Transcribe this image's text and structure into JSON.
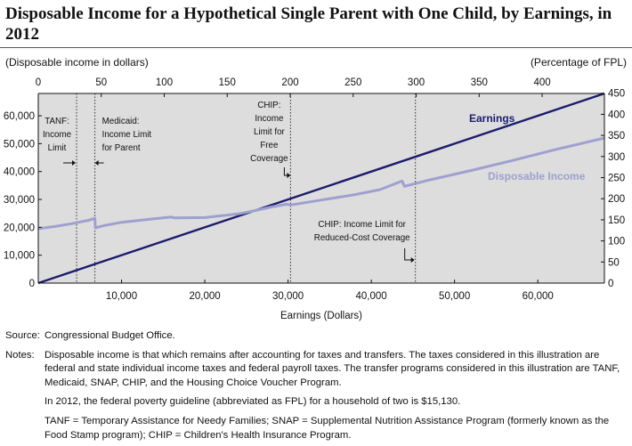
{
  "title": "Disposable Income for a Hypothetical Single Parent with One Child, by Earnings, in 2012",
  "chart_data": {
    "type": "line",
    "title": "Disposable Income for a Hypothetical Single Parent with One Child, by Earnings, in 2012",
    "xlabel": "Earnings (Dollars)",
    "ylabel_left": "(Disposable income in dollars)",
    "xlabel_top": "(Percentage of FPL)",
    "xlim": [
      0,
      68000
    ],
    "ylim": [
      0,
      68000
    ],
    "x_ticks": [
      10000,
      20000,
      30000,
      40000,
      50000,
      60000
    ],
    "x_tick_labels": [
      "10,000",
      "20,000",
      "30,000",
      "40,000",
      "50,000",
      "60,000"
    ],
    "y_ticks": [
      0,
      10000,
      20000,
      30000,
      40000,
      50000,
      60000
    ],
    "y_tick_labels": [
      "0",
      "10,000",
      "20,000",
      "30,000",
      "40,000",
      "50,000",
      "60,000"
    ],
    "fpl_top_ticks": [
      0,
      50,
      100,
      150,
      200,
      250,
      300,
      350,
      400
    ],
    "fpl_right_ticks": [
      0,
      50,
      100,
      150,
      200,
      250,
      300,
      350,
      400,
      450
    ],
    "fpl_unit_dollars": 15130,
    "series": [
      {
        "name": "Earnings",
        "color": "#1c1c6e",
        "x": [
          0,
          68000
        ],
        "y": [
          0,
          68000
        ]
      },
      {
        "name": "Disposable Income",
        "color": "#9ea0cf",
        "x": [
          0,
          2000,
          4000,
          6000,
          6800,
          6850,
          8000,
          10000,
          13000,
          16000,
          16300,
          20000,
          24000,
          26000,
          28000,
          29800,
          30300,
          34000,
          38000,
          41000,
          43700,
          44000,
          47000,
          52000,
          57000,
          62000,
          68000
        ],
        "y": [
          19500,
          20300,
          21300,
          22500,
          23200,
          19800,
          20700,
          21800,
          22800,
          23700,
          23400,
          23500,
          24800,
          26000,
          27300,
          28300,
          28000,
          29800,
          31700,
          33500,
          36600,
          34700,
          37000,
          40400,
          44000,
          47800,
          52000
        ]
      }
    ],
    "vertical_lines": [
      {
        "x": 4600,
        "label": "TANF: Income Limit"
      },
      {
        "x": 6800,
        "label": "Medicaid: Income Limit for Parent"
      },
      {
        "x": 30300,
        "label": "CHIP: Income Limit for Free Coverage"
      },
      {
        "x": 45300,
        "label": "CHIP: Income Limit for Reduced-Cost Coverage"
      }
    ],
    "grid": false,
    "legend": "direct labels on lines"
  },
  "annotations": {
    "tanf": [
      "TANF:",
      "Income",
      "Limit"
    ],
    "medicaid": [
      "Medicaid:",
      "Income Limit",
      "for Parent"
    ],
    "chip_free": [
      "CHIP:",
      "Income",
      "Limit for",
      "Free",
      "Coverage"
    ],
    "chip_reduced": [
      "CHIP: Income Limit for",
      "Reduced-Cost Coverage"
    ],
    "earnings_label": "Earnings",
    "disposable_label": "Disposable Income"
  },
  "notes": {
    "source_label": "Source:",
    "source_text": "Congressional Budget Office.",
    "notes_label": "Notes:",
    "notes_text": "Disposable income is that which remains after accounting for taxes and transfers. The taxes considered in this illustration are federal and state individual income taxes and federal payroll taxes. The transfer programs considered in this illustration are TANF, Medicaid, SNAP, CHIP, and the Housing Choice Voucher Program.",
    "fpl_text": "In 2012, the federal poverty guideline (abbreviated as FPL) for a household of two is $15,130.",
    "abbrev_text": "TANF = Temporary Assistance for Needy Families; SNAP = Supplemental Nutrition Assistance Program (formerly known as the Food Stamp program); CHIP = Children's Health Insurance Program."
  }
}
